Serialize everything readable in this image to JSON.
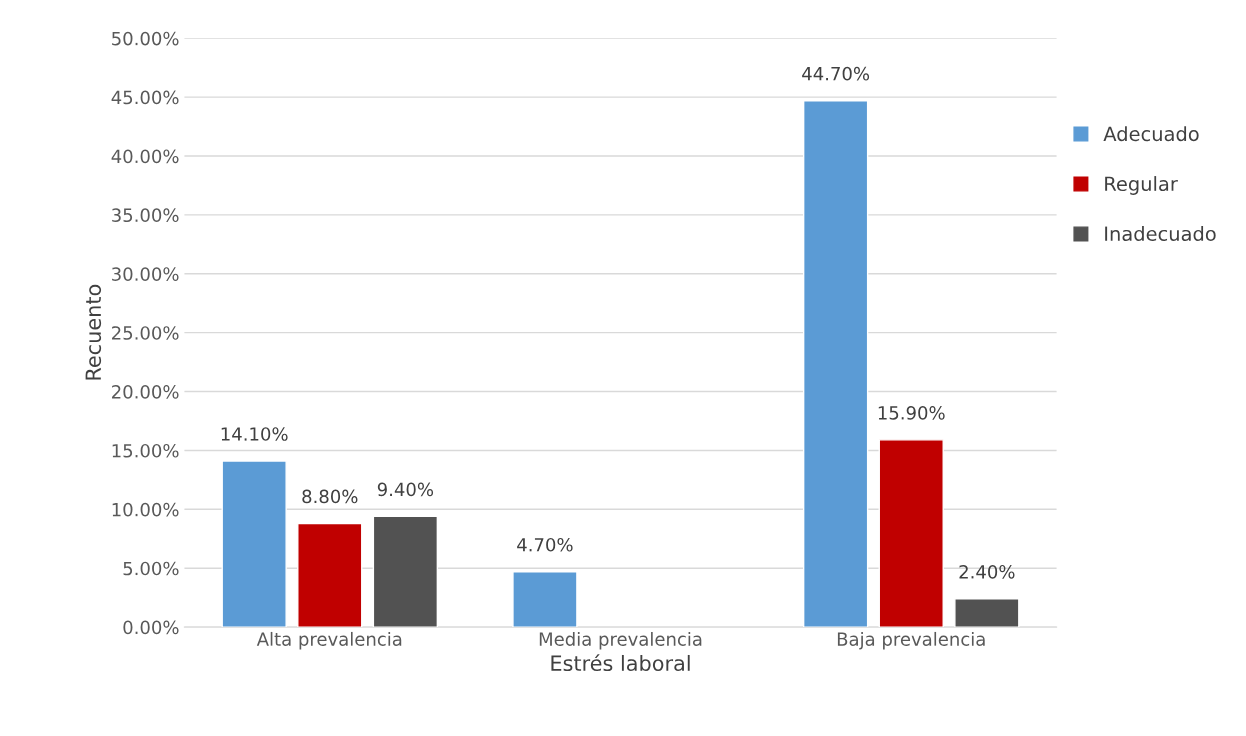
{
  "chart_data": {
    "type": "bar",
    "xlabel": "Estrés laboral",
    "ylabel": "Recuento",
    "categories": [
      "Alta prevalencia",
      "Media prevalencia",
      "Baja prevalencia"
    ],
    "series": [
      {
        "name": "Adecuado",
        "color": "#5b9bd5",
        "values": [
          14.1,
          4.7,
          44.7
        ],
        "value_labels": [
          "14.10%",
          "4.70%",
          "44.70%"
        ]
      },
      {
        "name": "Regular",
        "color": "#c00000",
        "values": [
          8.8,
          null,
          15.9
        ],
        "value_labels": [
          "8.80%",
          null,
          "15.90%"
        ]
      },
      {
        "name": "Inadecuado",
        "color": "#525252",
        "values": [
          9.4,
          null,
          2.4
        ],
        "value_labels": [
          "9.40%",
          null,
          "2.40%"
        ]
      }
    ],
    "ylim": [
      0,
      50
    ],
    "yticks": [
      {
        "value": 0,
        "label": "0.00%"
      },
      {
        "value": 5,
        "label": "5.00%"
      },
      {
        "value": 10,
        "label": "10.00%"
      },
      {
        "value": 15,
        "label": "15.00%"
      },
      {
        "value": 20,
        "label": "20.00%"
      },
      {
        "value": 25,
        "label": "25.00%"
      },
      {
        "value": 30,
        "label": "30.00%"
      },
      {
        "value": 35,
        "label": "35.00%"
      },
      {
        "value": 40,
        "label": "40.00%"
      },
      {
        "value": 45,
        "label": "45.00%"
      },
      {
        "value": 50,
        "label": "50.00%"
      }
    ],
    "grid": "y",
    "legend": "right"
  }
}
